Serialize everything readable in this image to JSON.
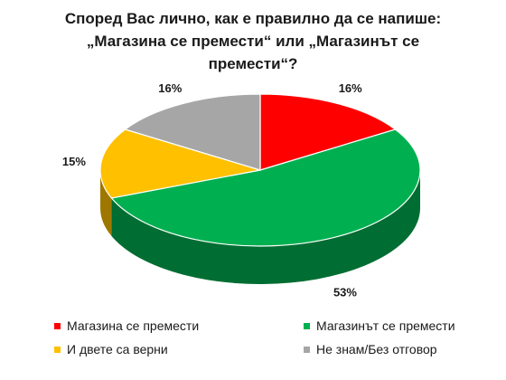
{
  "chart_data": {
    "type": "pie",
    "title": "Според Вас лично, как е правилно да се напише:\n„Магазина се премести“ или „Магазинът се\nпремести“?",
    "categories": [
      "Магазина се премести",
      "Магазинът се премести",
      "И двете са верни",
      "Не знам/Без отговор"
    ],
    "values": [
      16,
      53,
      15,
      16
    ],
    "labels": [
      "16%",
      "53%",
      "15%",
      "16%"
    ],
    "colors": [
      "#ff0000",
      "#00b050",
      "#ffc000",
      "#a6a6a6"
    ],
    "legend_position": "bottom",
    "style": "3d"
  }
}
